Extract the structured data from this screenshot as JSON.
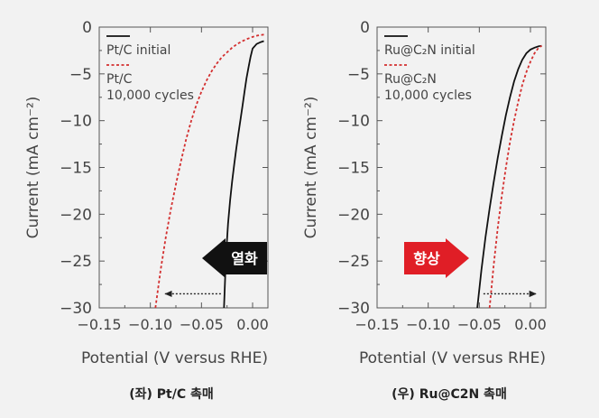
{
  "chart_data": [
    {
      "type": "line",
      "caption": "(좌) Pt/C 촉매",
      "xlabel": "Potential (V versus RHE)",
      "ylabel": "Current (mA cm⁻²)",
      "xlim": [
        -0.15,
        0.015
      ],
      "ylim": [
        -30,
        0
      ],
      "xticks": [
        -0.15,
        -0.1,
        -0.05,
        0.0
      ],
      "xtick_labels": [
        "−0.15",
        "−0.10",
        "−0.05",
        "0.00"
      ],
      "yticks": [
        0,
        -5,
        -10,
        -15,
        -20,
        -25,
        -30
      ],
      "ytick_labels": [
        "0",
        "−5",
        "−10",
        "−15",
        "−20",
        "−25",
        "−30"
      ],
      "series": [
        {
          "name": "Pt/C initial",
          "color": "#111111",
          "style": "solid",
          "x": [
            -0.028,
            -0.026,
            -0.024,
            -0.022,
            -0.02,
            -0.018,
            -0.016,
            -0.014,
            -0.012,
            -0.01,
            -0.008,
            -0.006,
            -0.004,
            -0.002,
            0.0,
            0.004,
            0.008,
            0.011
          ],
          "y": [
            -30,
            -24.5,
            -21,
            -18.5,
            -16.5,
            -14.7,
            -13,
            -11.5,
            -10,
            -8.5,
            -7,
            -5.5,
            -4.3,
            -3.2,
            -2.3,
            -1.8,
            -1.6,
            -1.5
          ]
        },
        {
          "name": "Pt/C 10,000 cycles",
          "color": "#d32f2f",
          "style": "dashed",
          "x": [
            -0.095,
            -0.09,
            -0.085,
            -0.08,
            -0.075,
            -0.07,
            -0.065,
            -0.06,
            -0.055,
            -0.05,
            -0.045,
            -0.04,
            -0.035,
            -0.03,
            -0.025,
            -0.02,
            -0.015,
            -0.01,
            -0.005,
            0.0,
            0.005,
            0.011
          ],
          "y": [
            -30,
            -26,
            -22.5,
            -19.5,
            -16.8,
            -14.3,
            -12,
            -10,
            -8.3,
            -6.9,
            -5.7,
            -4.7,
            -3.9,
            -3.2,
            -2.7,
            -2.2,
            -1.8,
            -1.5,
            -1.25,
            -1.05,
            -0.9,
            -0.8
          ]
        }
      ],
      "legend_position": "top-left",
      "annotation": {
        "label": "열화",
        "arrow_color": "#111111",
        "direction": "left",
        "dotted_arrow": {
          "from_x": -0.031,
          "to_x": -0.086,
          "y": -28.5
        }
      }
    },
    {
      "type": "line",
      "caption": "(우) Ru@C2N 촉매",
      "xlabel": "Potential (V versus RHE)",
      "ylabel": "Current (mA cm⁻²)",
      "xlim": [
        -0.15,
        0.015
      ],
      "ylim": [
        -30,
        0
      ],
      "xticks": [
        -0.15,
        -0.1,
        -0.05,
        0.0
      ],
      "xtick_labels": [
        "−0.15",
        "−0.10",
        "−0.05",
        "0.00"
      ],
      "yticks": [
        0,
        -5,
        -10,
        -15,
        -20,
        -25,
        -30
      ],
      "ytick_labels": [
        "0",
        "−5",
        "−10",
        "−15",
        "−20",
        "−25",
        "−30"
      ],
      "series": [
        {
          "name": "Ru@C₂N initial",
          "color": "#111111",
          "style": "solid",
          "x": [
            -0.052,
            -0.048,
            -0.044,
            -0.04,
            -0.036,
            -0.032,
            -0.028,
            -0.024,
            -0.02,
            -0.016,
            -0.012,
            -0.008,
            -0.004,
            0.0,
            0.004,
            0.008,
            0.011
          ],
          "y": [
            -30,
            -26,
            -22.5,
            -19.4,
            -16.6,
            -14,
            -11.6,
            -9.4,
            -7.5,
            -5.8,
            -4.5,
            -3.5,
            -2.8,
            -2.4,
            -2.2,
            -2.05,
            -2.0
          ]
        },
        {
          "name": "Ru@C₂N 10,000 cycles",
          "color": "#d32f2f",
          "style": "dashed",
          "x": [
            -0.04,
            -0.036,
            -0.032,
            -0.028,
            -0.024,
            -0.02,
            -0.016,
            -0.012,
            -0.008,
            -0.004,
            0.0,
            0.004,
            0.008,
            0.011
          ],
          "y": [
            -30,
            -25.5,
            -21.5,
            -18,
            -15,
            -12.3,
            -10,
            -8,
            -6.2,
            -4.8,
            -3.7,
            -2.8,
            -2.2,
            -2.0
          ]
        }
      ],
      "legend_position": "top-left",
      "annotation": {
        "label": "향상",
        "arrow_color": "#e01e26",
        "direction": "right",
        "dotted_arrow": {
          "from_x": -0.046,
          "to_x": 0.006,
          "y": -28.5
        }
      }
    }
  ]
}
